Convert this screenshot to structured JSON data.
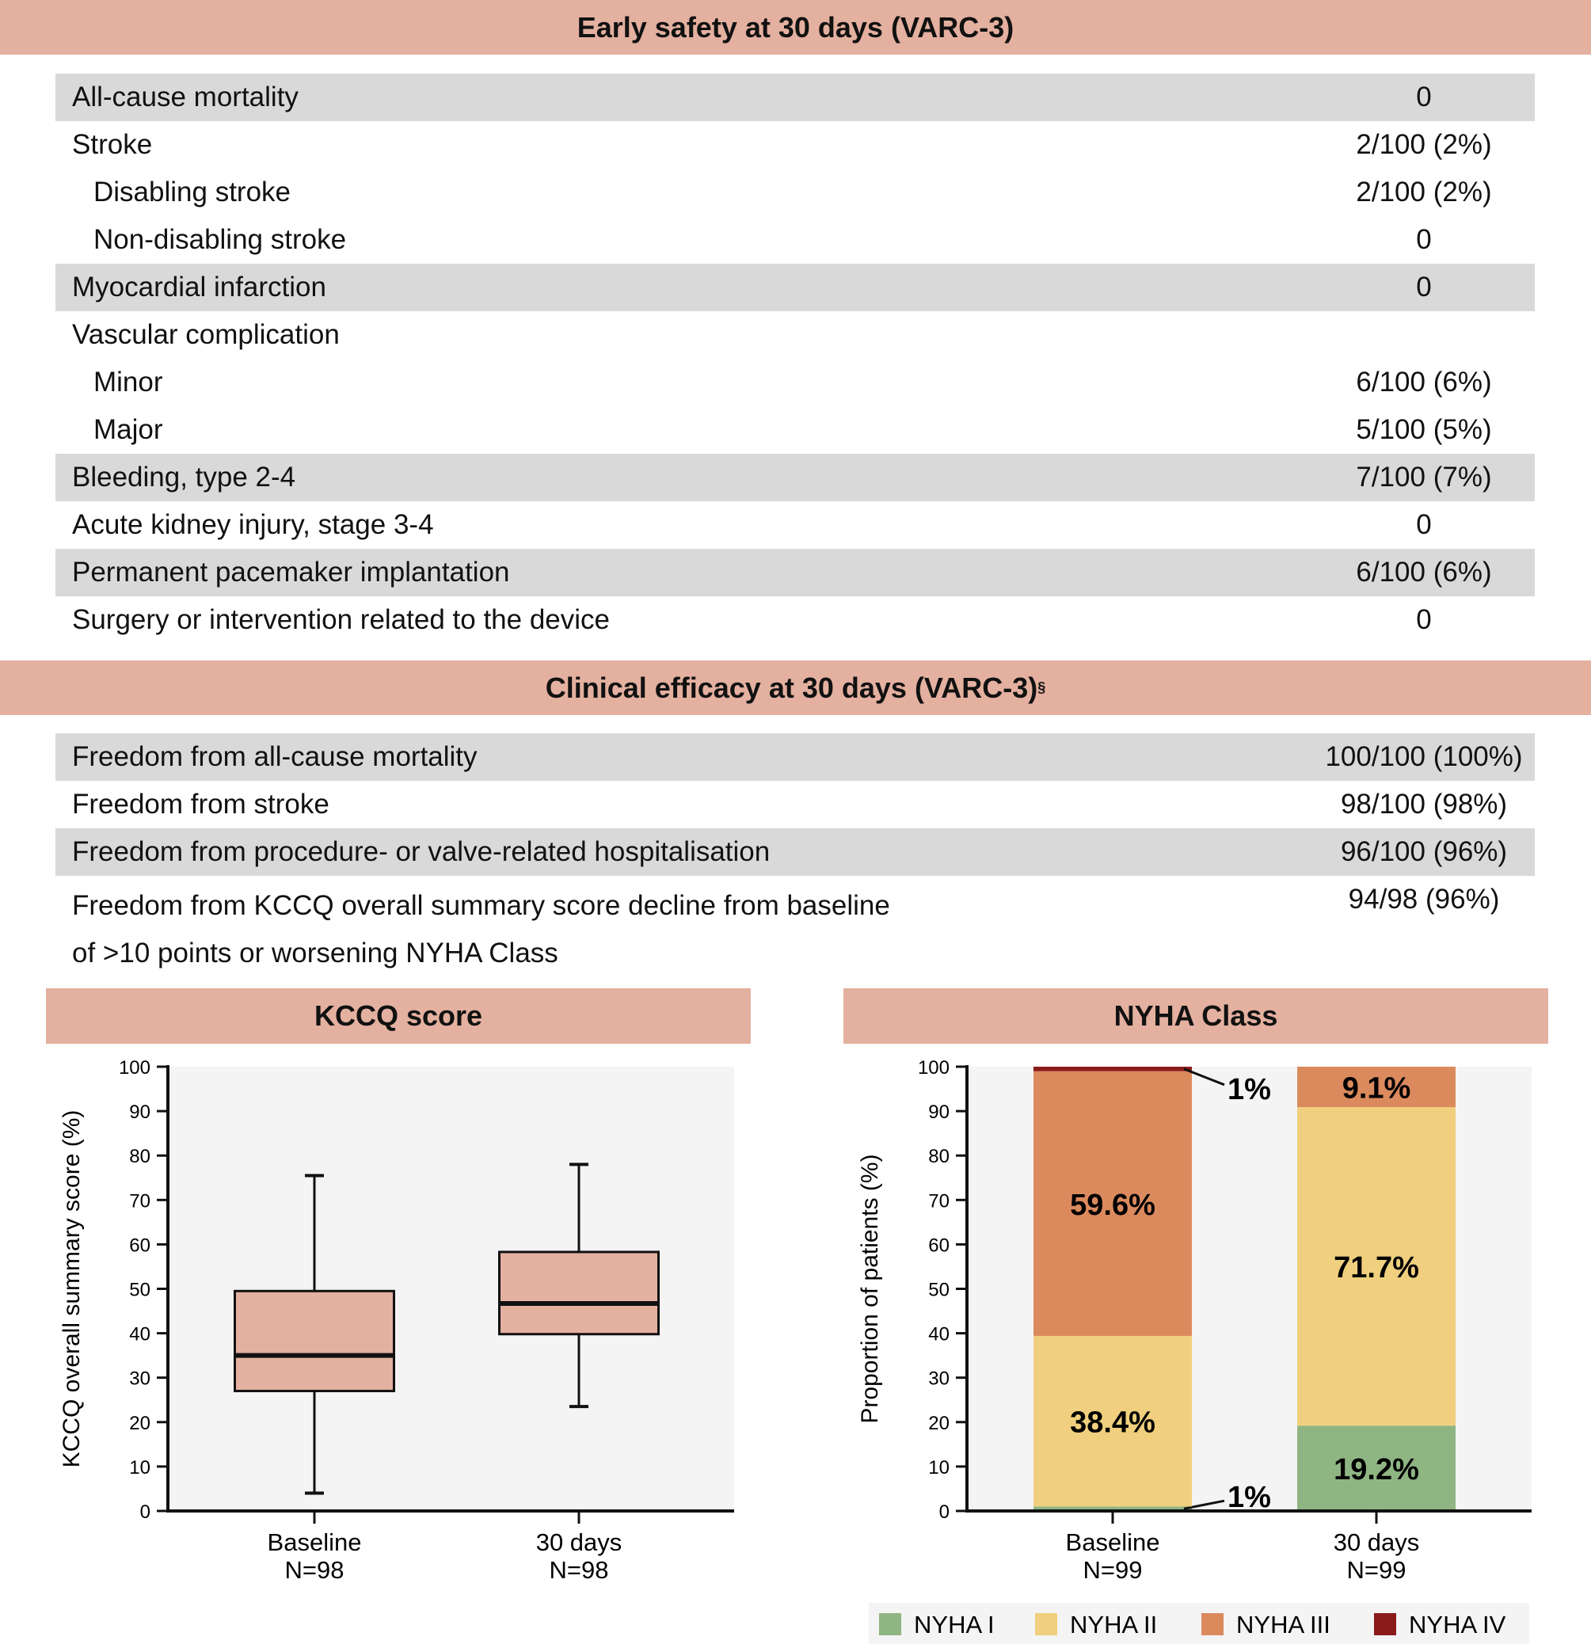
{
  "safety": {
    "title": "Early safety at 30 days (VARC-3)",
    "rows": [
      {
        "label": "All-cause mortality",
        "value": "0",
        "band": true
      },
      {
        "label": "Stroke",
        "value": "2/100 (2%)"
      },
      {
        "label": "Disabling stroke",
        "value": "2/100 (2%)",
        "indent": true
      },
      {
        "label": "Non-disabling stroke",
        "value": "0",
        "indent": true
      },
      {
        "label": "Myocardial infarction",
        "value": "0",
        "band": true
      },
      {
        "label": "Vascular complication",
        "value": ""
      },
      {
        "label": "Minor",
        "value": "6/100 (6%)",
        "indent": true
      },
      {
        "label": "Major",
        "value": "5/100 (5%)",
        "indent": true
      },
      {
        "label": "Bleeding, type 2-4",
        "value": "7/100 (7%)",
        "band": true
      },
      {
        "label": "Acute kidney injury, stage 3-4",
        "value": "0"
      },
      {
        "label": "Permanent pacemaker implantation",
        "value": "6/100 (6%)",
        "band": true
      },
      {
        "label": "Surgery or intervention related to the device",
        "value": "0"
      }
    ]
  },
  "efficacy": {
    "title": "Clinical efficacy at 30 days (VARC-3)",
    "title_mark": "§",
    "rows": [
      {
        "label": "Freedom from all-cause mortality",
        "value": "100/100 (100%)",
        "band": true
      },
      {
        "label": "Freedom from stroke",
        "value": "98/100 (98%)"
      },
      {
        "label": "Freedom from procedure- or valve-related hospitalisation",
        "value": "96/100 (96%)",
        "band": true
      },
      {
        "label": "Freedom from KCCQ overall summary score decline from baseline",
        "label2": "of >10 points or worsening NYHA Class",
        "value": "94/98 (96%)",
        "tall": true
      }
    ]
  },
  "chart_data": [
    {
      "type": "box",
      "title": "KCCQ score",
      "ylabel": "KCCQ overall summary score (%)",
      "ylim": [
        0,
        100
      ],
      "yticks": [
        0,
        10,
        20,
        30,
        40,
        50,
        60,
        70,
        80,
        90,
        100
      ],
      "categories": [
        "Baseline",
        "30 days"
      ],
      "category_n": [
        "N=98",
        "N=98"
      ],
      "boxes": [
        {
          "min": 4,
          "q1": 27,
          "median": 35,
          "q3": 49.5,
          "max": 75.5
        },
        {
          "min": 23.5,
          "q1": 39.8,
          "median": 46.7,
          "q3": 58.3,
          "max": 78
        }
      ],
      "colors": {
        "box": "#e4b1a0",
        "plot_bg": "#f4f4f4"
      }
    },
    {
      "type": "bar",
      "stacked": true,
      "title": "NYHA Class",
      "ylabel": "Proportion of patients (%)",
      "ylim": [
        0,
        100
      ],
      "yticks": [
        0,
        10,
        20,
        30,
        40,
        50,
        60,
        70,
        80,
        90,
        100
      ],
      "categories": [
        "Baseline",
        "30 days"
      ],
      "category_n": [
        "N=99",
        "N=99"
      ],
      "series": [
        {
          "name": "NYHA I",
          "values": [
            1,
            19.2
          ],
          "labels": [
            "1%",
            "19.2%"
          ],
          "color": "#8fb582"
        },
        {
          "name": "NYHA II",
          "values": [
            38.4,
            71.7
          ],
          "labels": [
            "38.4%",
            "71.7%"
          ],
          "color": "#f0d07e"
        },
        {
          "name": "NYHA III",
          "values": [
            59.6,
            9.1
          ],
          "labels": [
            "59.6%",
            "9.1%"
          ],
          "color": "#db8a5e"
        },
        {
          "name": "NYHA IV",
          "values": [
            1,
            0
          ],
          "labels": [
            "1%",
            ""
          ],
          "color": "#8b1a1a"
        }
      ],
      "legend": "bottom",
      "colors": {
        "plot_bg": "#f4f4f4"
      }
    }
  ]
}
